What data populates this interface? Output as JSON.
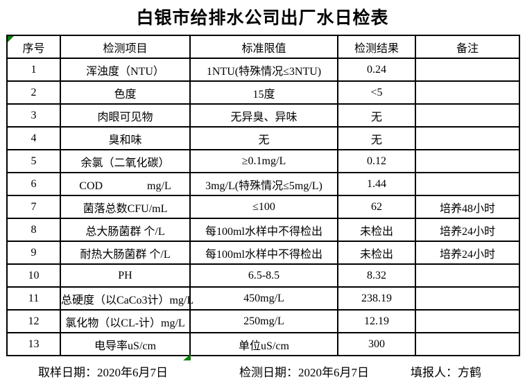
{
  "title": "白银市给排水公司出厂水日检表",
  "colors": {
    "border": "#000000",
    "marker_green": "#008000",
    "background": "#ffffff",
    "text": "#000000"
  },
  "table": {
    "headers": [
      "序号",
      "检测项目",
      "标准限值",
      "检测结果",
      "备注"
    ],
    "rows": [
      {
        "no": "1",
        "item": "浑浊度（NTU）",
        "limit": "1NTU(特殊情况≤3NTU)",
        "result": "0.24",
        "remark": ""
      },
      {
        "no": "2",
        "item": "色度",
        "limit": "15度",
        "result": "<5",
        "remark": ""
      },
      {
        "no": "3",
        "item": "肉眼可见物",
        "limit": "无异臭、异味",
        "result": "无",
        "remark": ""
      },
      {
        "no": "4",
        "item": "臭和味",
        "limit": "无",
        "result": "无",
        "remark": ""
      },
      {
        "no": "5",
        "item": "余氯（二氧化碳）",
        "limit": "≥0.1mg/L",
        "result": "0.12",
        "remark": ""
      },
      {
        "no": "6",
        "item": "COD　　　　mg/L",
        "limit": "3mg/L(特殊情况≤5mg/L)",
        "result": "1.44",
        "remark": ""
      },
      {
        "no": "7",
        "item": "菌落总数CFU/mL",
        "limit": "≤100",
        "result": "62",
        "remark": "培养48小时"
      },
      {
        "no": "8",
        "item": "总大肠菌群 个/L",
        "limit": "每100ml水样中不得检出",
        "result": "未检出",
        "remark": "培养24小时"
      },
      {
        "no": "9",
        "item": "耐热大肠菌群 个/L",
        "limit": "每100ml水样中不得检出",
        "result": "未检出",
        "remark": "培养24小时"
      },
      {
        "no": "10",
        "item": "PH",
        "limit": "6.5-8.5",
        "result": "8.32",
        "remark": ""
      },
      {
        "no": "11",
        "item": "总硬度（以CaCo3计）mg/L",
        "limit": "450mg/L",
        "result": "238.19",
        "remark": ""
      },
      {
        "no": "12",
        "item": "氯化物（以CL-计）mg/L",
        "limit": "250mg/L",
        "result": "12.19",
        "remark": ""
      },
      {
        "no": "13",
        "item": "电导率uS/cm",
        "limit": "单位uS/cm",
        "result": "300",
        "remark": ""
      }
    ]
  },
  "footer": {
    "sampling_date": "取样日期：2020年6月7日",
    "test_date": "检测日期：2020年6月7日",
    "reporter": "填报人：方鹤"
  }
}
